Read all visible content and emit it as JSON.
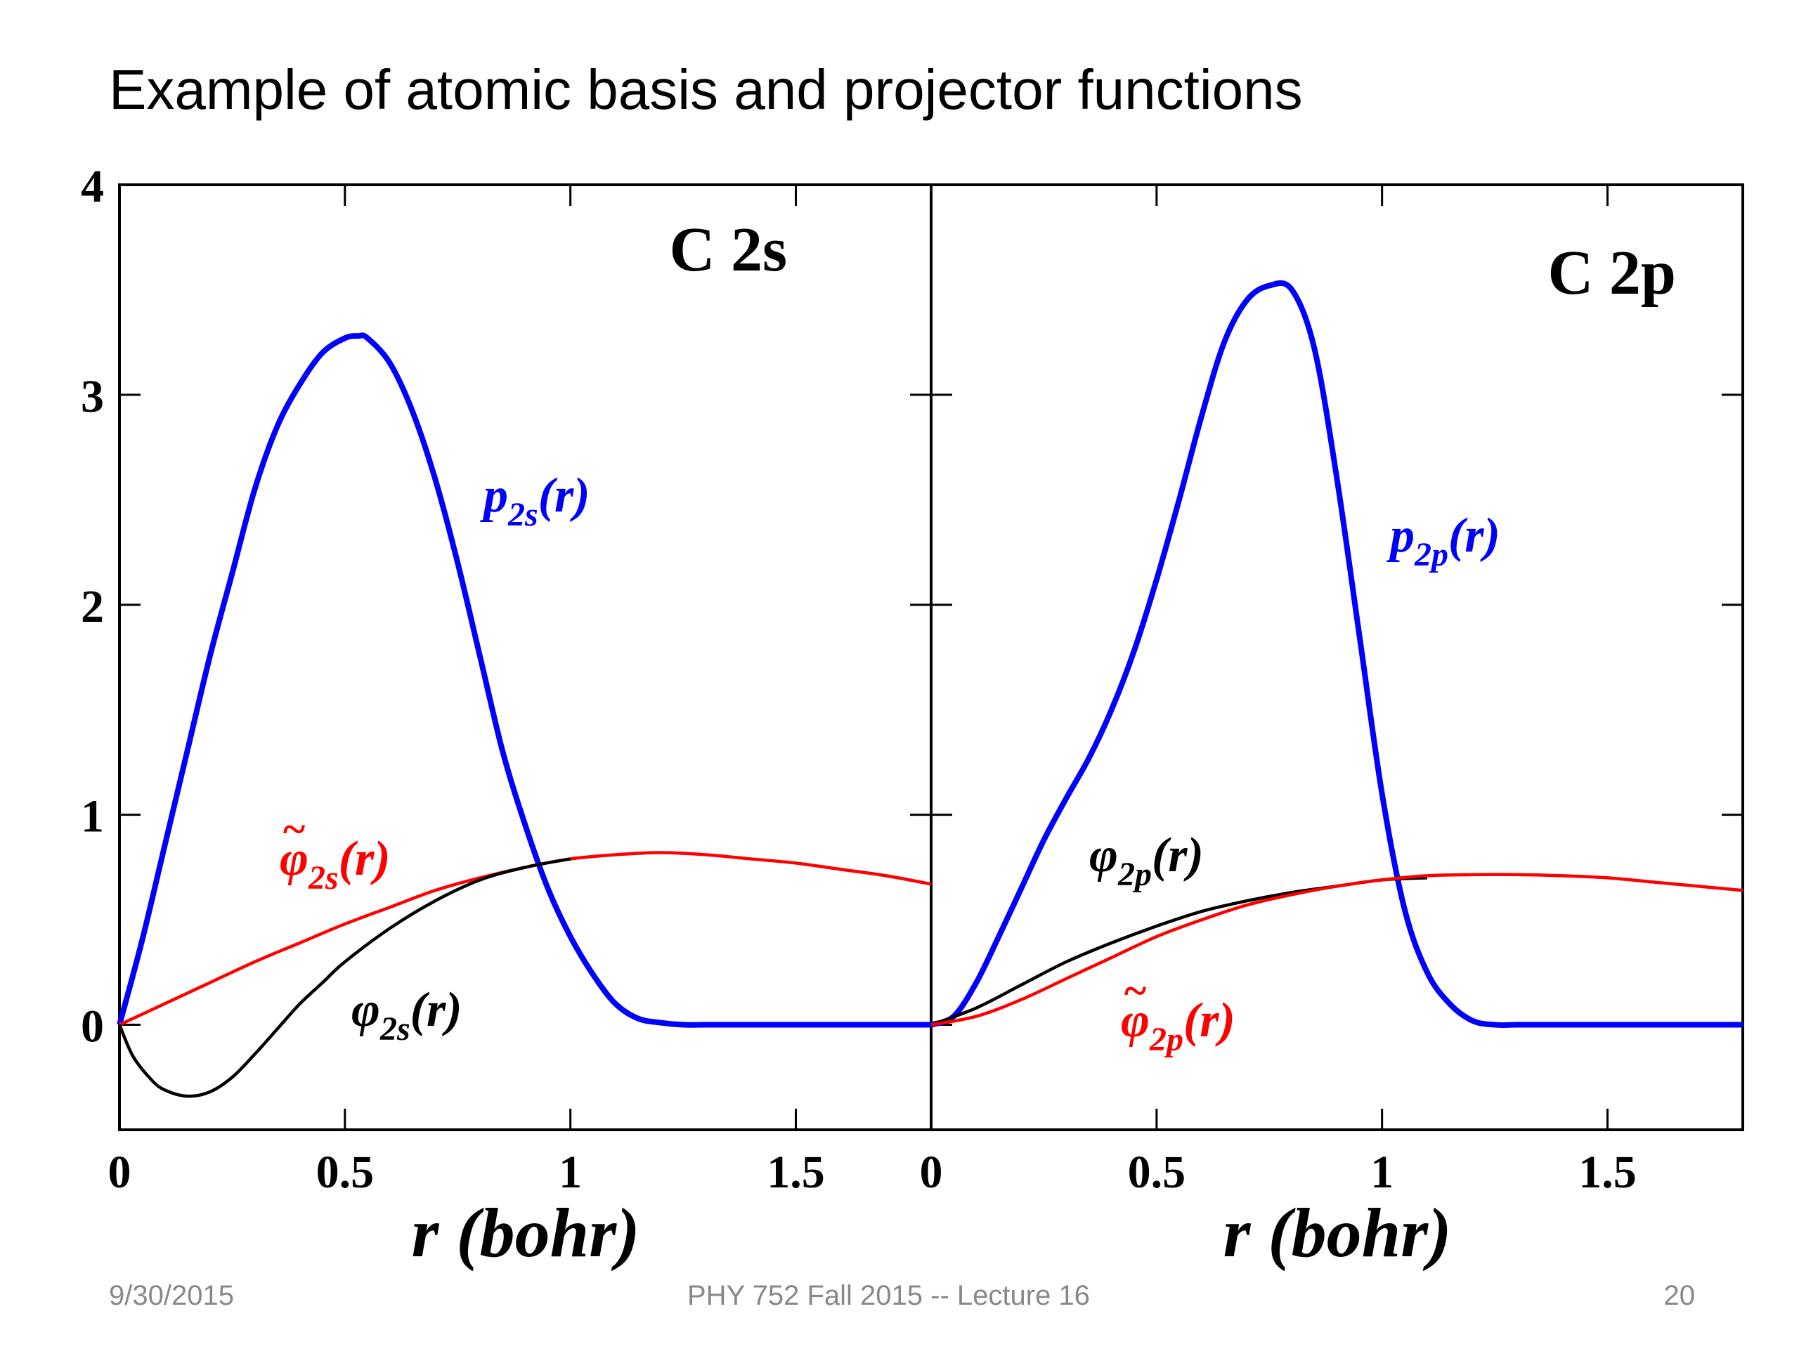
{
  "slide": {
    "title": "Example of atomic basis and projector functions",
    "footer_left": "9/30/2015",
    "footer_center": "PHY 752  Fall 2015 -- Lecture 16",
    "footer_right": "20"
  },
  "chart_data": [
    {
      "type": "line",
      "title": "C 2s",
      "xlabel": "r (bohr)",
      "ylabel": "",
      "xlim": [
        0,
        1.8
      ],
      "ylim": [
        -0.5,
        4
      ],
      "xticks": [
        "0",
        "0.5",
        "1",
        "1.5"
      ],
      "yticks": [
        "0",
        "1",
        "2",
        "3",
        "4"
      ],
      "series": [
        {
          "name": "p2s(r)",
          "color": "#0000ff",
          "x": [
            0,
            0.05,
            0.1,
            0.15,
            0.2,
            0.25,
            0.3,
            0.35,
            0.4,
            0.45,
            0.5,
            0.53,
            0.55,
            0.6,
            0.65,
            0.7,
            0.75,
            0.8,
            0.85,
            0.9,
            0.95,
            1.0,
            1.05,
            1.1,
            1.15,
            1.2,
            1.25,
            1.3,
            1.4,
            1.5,
            1.6,
            1.7,
            1.8
          ],
          "y": [
            0,
            0.4,
            0.85,
            1.3,
            1.75,
            2.15,
            2.55,
            2.85,
            3.05,
            3.2,
            3.27,
            3.28,
            3.27,
            3.15,
            2.92,
            2.6,
            2.2,
            1.75,
            1.3,
            0.95,
            0.65,
            0.42,
            0.24,
            0.1,
            0.03,
            0.01,
            0,
            0,
            0,
            0,
            0,
            0,
            0
          ]
        },
        {
          "name": "φ̃2s(r)",
          "color": "#ff0000",
          "x": [
            0,
            0.1,
            0.2,
            0.3,
            0.4,
            0.5,
            0.6,
            0.7,
            0.8,
            0.9,
            1.0,
            1.1,
            1.2,
            1.3,
            1.4,
            1.5,
            1.6,
            1.7,
            1.8
          ],
          "y": [
            0,
            0.1,
            0.2,
            0.3,
            0.39,
            0.48,
            0.56,
            0.64,
            0.7,
            0.75,
            0.79,
            0.81,
            0.82,
            0.81,
            0.79,
            0.77,
            0.74,
            0.71,
            0.67
          ]
        },
        {
          "name": "φ2s(r)",
          "color": "#000000",
          "x": [
            0,
            0.03,
            0.07,
            0.1,
            0.15,
            0.2,
            0.25,
            0.3,
            0.35,
            0.4,
            0.45,
            0.5,
            0.6,
            0.7,
            0.8,
            0.9,
            1.0
          ],
          "y": [
            0,
            -0.15,
            -0.26,
            -0.31,
            -0.34,
            -0.32,
            -0.25,
            -0.14,
            -0.02,
            0.1,
            0.2,
            0.3,
            0.46,
            0.59,
            0.69,
            0.75,
            0.79
          ]
        }
      ]
    },
    {
      "type": "line",
      "title": "C 2p",
      "xlabel": "r (bohr)",
      "ylabel": "",
      "xlim": [
        0,
        1.8
      ],
      "ylim": [
        -0.5,
        4
      ],
      "xticks": [
        "0",
        "0.5",
        "1",
        "1.5"
      ],
      "yticks": [],
      "series": [
        {
          "name": "p2p(r)",
          "color": "#0000ff",
          "x": [
            0,
            0.05,
            0.1,
            0.15,
            0.2,
            0.25,
            0.3,
            0.35,
            0.4,
            0.45,
            0.5,
            0.55,
            0.6,
            0.65,
            0.7,
            0.75,
            0.8,
            0.85,
            0.9,
            0.95,
            1.0,
            1.05,
            1.1,
            1.15,
            1.2,
            1.25,
            1.3,
            1.4,
            1.5,
            1.6,
            1.7,
            1.8
          ],
          "y": [
            0,
            0.04,
            0.2,
            0.42,
            0.65,
            0.88,
            1.08,
            1.27,
            1.5,
            1.78,
            2.12,
            2.5,
            2.9,
            3.25,
            3.45,
            3.52,
            3.5,
            3.22,
            2.6,
            1.85,
            1.1,
            0.55,
            0.25,
            0.1,
            0.02,
            0,
            0,
            0,
            0,
            0,
            0,
            0
          ]
        },
        {
          "name": "φ2p(r)",
          "color": "#000000",
          "x": [
            0,
            0.1,
            0.2,
            0.3,
            0.4,
            0.5,
            0.6,
            0.7,
            0.8,
            0.9,
            1.0,
            1.1
          ],
          "y": [
            0,
            0.08,
            0.19,
            0.3,
            0.39,
            0.47,
            0.54,
            0.59,
            0.63,
            0.66,
            0.69,
            0.7
          ]
        },
        {
          "name": "φ̃2p(r)",
          "color": "#ff0000",
          "x": [
            0,
            0.1,
            0.2,
            0.3,
            0.4,
            0.5,
            0.6,
            0.7,
            0.8,
            0.9,
            1.0,
            1.1,
            1.2,
            1.3,
            1.4,
            1.5,
            1.6,
            1.7,
            1.8
          ],
          "y": [
            0,
            0.04,
            0.12,
            0.22,
            0.32,
            0.42,
            0.5,
            0.57,
            0.62,
            0.66,
            0.69,
            0.71,
            0.715,
            0.715,
            0.71,
            0.7,
            0.68,
            0.66,
            0.64
          ]
        }
      ]
    }
  ]
}
